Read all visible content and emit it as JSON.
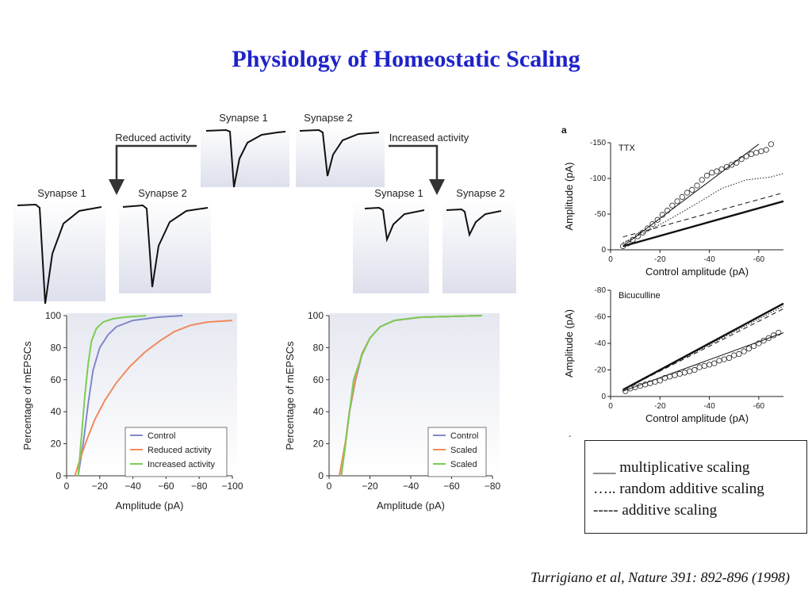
{
  "page": {
    "title": "Physiology of Homeostatic Scaling",
    "citation": "Turrigiano et al, Nature 391: 892-896 (1998)",
    "legend_lines": [
      "___ multiplicative scaling",
      "….. random additive scaling",
      "----- additive scaling"
    ],
    "stray_mark": "-"
  },
  "traces": {
    "top_synapse1": "Synapse 1",
    "top_synapse2": "Synapse 2",
    "reduced_activity": "Reduced activity",
    "increased_activity": "Increased activity",
    "left_synapse1": "Synapse 1",
    "left_synapse2": "Synapse 2",
    "right_synapse1": "Synapse 1",
    "right_synapse2": "Synapse 2"
  },
  "chart_data": [
    {
      "type": "line",
      "id": "cumulative_left",
      "xlabel": "Amplitude (pA)",
      "ylabel": "Percentage of mEPSCs",
      "xlim": [
        0,
        -100
      ],
      "ylim": [
        0,
        100
      ],
      "xticks": [
        "0",
        "−20",
        "−40",
        "−60",
        "−80",
        "−100"
      ],
      "yticks": [
        "0",
        "20",
        "40",
        "60",
        "80",
        "100"
      ],
      "legend_position": "bottom-right",
      "colors": {
        "Control": "#8088c8",
        "Reduced activity": "#f08a5e",
        "Increased activity": "#7ccc56"
      },
      "series": [
        {
          "name": "Control",
          "x": [
            -7,
            -10,
            -13,
            -16,
            -20,
            -25,
            -30,
            -40,
            -55,
            -70
          ],
          "y": [
            0,
            20,
            45,
            66,
            80,
            88,
            93,
            97,
            99,
            100
          ]
        },
        {
          "name": "Reduced activity",
          "x": [
            -5,
            -8,
            -12,
            -17,
            -23,
            -30,
            -38,
            -47,
            -56,
            -65,
            -75,
            -85,
            -100
          ],
          "y": [
            0,
            10,
            22,
            35,
            47,
            58,
            68,
            77,
            84,
            90,
            94,
            96,
            97
          ]
        },
        {
          "name": "Increased activity",
          "x": [
            -7,
            -9,
            -11,
            -13,
            -15,
            -18,
            -22,
            -28,
            -35,
            -48
          ],
          "y": [
            0,
            25,
            50,
            70,
            84,
            92,
            96,
            98,
            99,
            100
          ]
        }
      ]
    },
    {
      "type": "line",
      "id": "cumulative_right",
      "xlabel": "Amplitude (pA)",
      "ylabel": "Percentage of mEPSCs",
      "xlim": [
        0,
        -80
      ],
      "ylim": [
        0,
        100
      ],
      "xticks": [
        "0",
        "−20",
        "−40",
        "−60",
        "−80"
      ],
      "yticks": [
        "0",
        "20",
        "40",
        "60",
        "80",
        "100"
      ],
      "legend_position": "bottom-right",
      "colors": {
        "Control": "#8088c8",
        "Scaled": "#f08a5e",
        "Scaled ": "#7ccc56"
      },
      "series": [
        {
          "name": "Control",
          "x": [
            -6,
            -8,
            -10,
            -13,
            -16,
            -20,
            -25,
            -32,
            -45,
            -75
          ],
          "y": [
            0,
            20,
            40,
            60,
            75,
            86,
            93,
            97,
            99,
            100
          ]
        },
        {
          "name": "Scaled",
          "x": [
            -5,
            -8,
            -10,
            -13,
            -16,
            -20,
            -25,
            -32,
            -45,
            -75
          ],
          "y": [
            0,
            21,
            41,
            61,
            76,
            86,
            93,
            97,
            99,
            100
          ]
        },
        {
          "name": "Scaled",
          "x": [
            -6,
            -8,
            -10,
            -12,
            -16,
            -20,
            -25,
            -32,
            -45,
            -75
          ],
          "y": [
            0,
            19,
            40,
            60,
            75,
            86,
            93,
            97,
            99,
            100
          ]
        }
      ]
    },
    {
      "type": "scatter",
      "id": "ttx",
      "panel_label": "a",
      "annotation": "TTX",
      "xlabel": "Control amplitude (pA)",
      "ylabel": "Amplitude (pA)",
      "xlim": [
        0,
        -70
      ],
      "ylim": [
        0,
        -150
      ],
      "xticks": [
        "0",
        "-20",
        "-40",
        "-60"
      ],
      "yticks": [
        "0",
        "-50",
        "-100",
        "-150"
      ],
      "points": {
        "x": [
          -5,
          -7,
          -9,
          -11,
          -13,
          -15,
          -17,
          -19,
          -21,
          -23,
          -25,
          -27,
          -29,
          -31,
          -33,
          -35,
          -37,
          -39,
          -41,
          -43,
          -45,
          -47,
          -49,
          -51,
          -53,
          -55,
          -57,
          -59,
          -61,
          -63,
          -65
        ],
        "y": [
          -5,
          -9,
          -14,
          -19,
          -24,
          -30,
          -36,
          -42,
          -49,
          -55,
          -62,
          -68,
          -74,
          -80,
          -84,
          -90,
          -98,
          -104,
          -108,
          -110,
          -113,
          -116,
          -119,
          -122,
          -127,
          -131,
          -134,
          -136,
          -138,
          -140,
          -148
        ]
      },
      "lines": [
        {
          "style": "solid-thin",
          "x": [
            -5,
            -60
          ],
          "y": [
            -5,
            -148
          ]
        },
        {
          "style": "solid-thick",
          "x": [
            -5,
            -70
          ],
          "y": [
            -5,
            -68
          ]
        },
        {
          "style": "dashed",
          "x": [
            -5,
            -70
          ],
          "y": [
            -18,
            -80
          ]
        },
        {
          "style": "dotted",
          "x": [
            -5,
            -15,
            -25,
            -35,
            -45,
            -55,
            -65,
            -70
          ],
          "y": [
            -10,
            -26,
            -45,
            -65,
            -86,
            -98,
            -102,
            -107
          ]
        }
      ]
    },
    {
      "type": "scatter",
      "id": "bicuculline",
      "annotation": "Bicuculline",
      "xlabel": "Control amplitude (pA)",
      "ylabel": "Amplitude (pA)",
      "xlim": [
        0,
        -70
      ],
      "ylim": [
        0,
        -80
      ],
      "xticks": [
        "0",
        "-20",
        "-40",
        "-60"
      ],
      "yticks": [
        "0",
        "-20",
        "-40",
        "-60",
        "-80"
      ],
      "points": {
        "x": [
          -6,
          -8,
          -10,
          -12,
          -14,
          -16,
          -18,
          -20,
          -22,
          -24,
          -26,
          -28,
          -30,
          -32,
          -34,
          -36,
          -38,
          -40,
          -42,
          -44,
          -46,
          -48,
          -50,
          -52,
          -54,
          -56,
          -58,
          -60,
          -62,
          -64,
          -66,
          -68
        ],
        "y": [
          -4,
          -6,
          -7,
          -8,
          -9,
          -10,
          -11,
          -12,
          -14,
          -15,
          -16,
          -17,
          -18,
          -19,
          -20,
          -22,
          -23,
          -24,
          -25,
          -27,
          -28,
          -29,
          -31,
          -32,
          -34,
          -36,
          -38,
          -40,
          -42,
          -44,
          -46,
          -48
        ]
      },
      "lines": [
        {
          "style": "solid-thin",
          "x": [
            -5,
            -70
          ],
          "y": [
            -4,
            -48
          ]
        },
        {
          "style": "solid-thick",
          "x": [
            -5,
            -70
          ],
          "y": [
            -5,
            -70
          ]
        },
        {
          "style": "dashed",
          "x": [
            -5,
            -70
          ],
          "y": [
            -5,
            -66
          ]
        },
        {
          "style": "dotted",
          "x": [
            -5,
            -70
          ],
          "y": [
            -5,
            -68
          ]
        }
      ]
    }
  ]
}
